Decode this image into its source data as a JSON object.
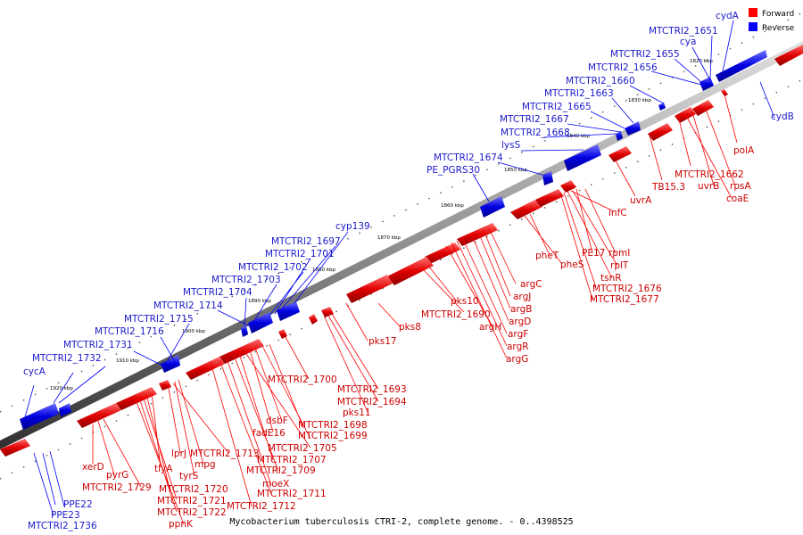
{
  "caption": "Mycobacterium tuberculosis CTRI-2, complete genome. - 0..4398525",
  "legend": {
    "forward": "Forward",
    "reverse": "Reverse",
    "forward_color": "#ff0000",
    "reverse_color": "#0000ff"
  },
  "colors": {
    "forward_label": "#cc0000",
    "reverse_label": "#1a1acc",
    "backbone": "#606060"
  },
  "ticks": [
    "1820 kbp",
    "1830 kbp",
    "1840 kbp",
    "1850 kbp",
    "1860 kbp",
    "1870 kbp",
    "1880 kbp",
    "1890 kbp",
    "1900 kbp",
    "1910 kbp",
    "1920 kbp"
  ],
  "labels_reverse": [
    "cydA",
    "MTCTRI2_1651",
    "cya",
    "MTCTRI2_1655",
    "MTCTRI2_1656",
    "MTCTRI2_1660",
    "MTCTRI2_1663",
    "MTCTRI2_1665",
    "MTCTRI2_1667",
    "MTCTRI2_1668",
    "lysS",
    "MTCTRI2_1674",
    "PE_PGRS30",
    "cyp139",
    "MTCTRI2_1697",
    "MTCTRI2_1701",
    "MTCTRI2_1702",
    "MTCTRI2_1703",
    "MTCTRI2_1704",
    "MTCTRI2_1714",
    "MTCTRI2_1715",
    "MTCTRI2_1716",
    "MTCTRI2_1731",
    "MTCTRI2_1732",
    "cycA",
    "cydB",
    "PPE22",
    "PPE23",
    "MTCTRI2_1736"
  ],
  "labels_forward": [
    "polA",
    "MTCTRI2_1662",
    "rpsA",
    "uvrB",
    "coaE",
    "TB15.3",
    "uvrA",
    "infC",
    "rpmI",
    "PE17",
    "rplT",
    "tsnR",
    "MTCTRI2_1676",
    "MTCTRI2_1677",
    "pheT",
    "pheS",
    "argC",
    "argJ",
    "argB",
    "argD",
    "argF",
    "argR",
    "argG",
    "argH",
    "pks10",
    "MTCTRI2_1690",
    "pks8",
    "pks17",
    "MTCTRI2_1693",
    "MTCTRI2_1694",
    "pks11",
    "MTCTRI2_1700",
    "MTCTRI2_1698",
    "MTCTRI2_1699",
    "dsbF",
    "fadE16",
    "MTCTRI2_1705",
    "MTCTRI2_1707",
    "MTCTRI2_1709",
    "moeX",
    "MTCTRI2_1711",
    "MTCTRI2_1712",
    "MTCTRI2_1713",
    "mpg",
    "tyrS",
    "lprJ",
    "tlyA",
    "MTCTRI2_1720",
    "MTCTRI2_1721",
    "MTCTRI2_1722",
    "ppnK",
    "xerD",
    "pyrG",
    "MTCTRI2_1729"
  ]
}
